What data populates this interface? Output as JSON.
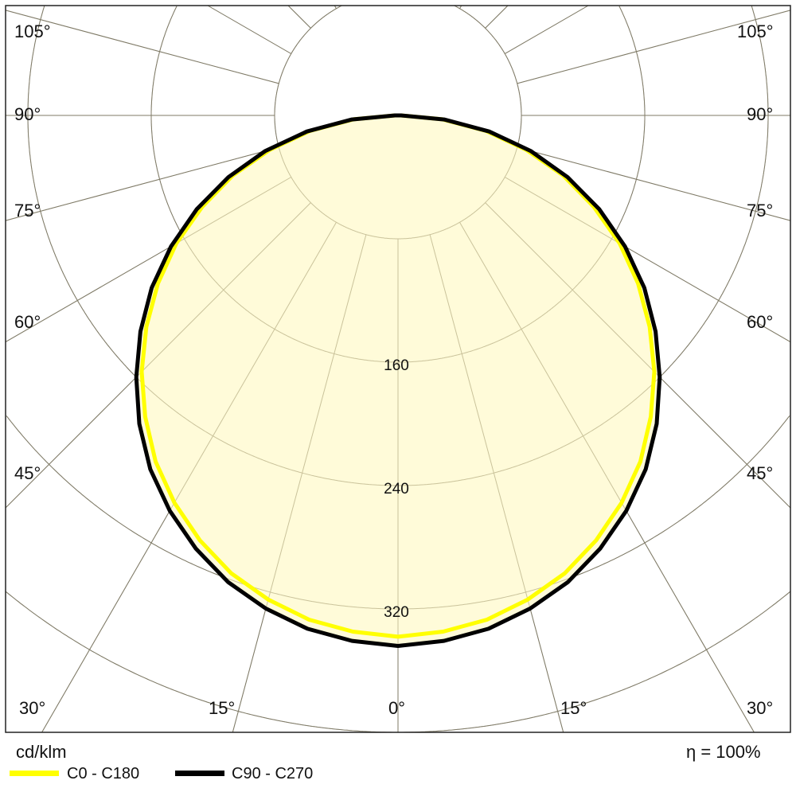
{
  "chart_data": {
    "type": "polar",
    "unit": "cd/klm",
    "efficiency_label": "η = 100%",
    "radial_ticks": [
      80,
      160,
      240,
      320,
      400
    ],
    "radial_tick_labels": [
      "160",
      "240",
      "320"
    ],
    "radial_max": 400,
    "angle_labels": [
      "105°",
      "90°",
      "75°",
      "60°",
      "45°",
      "30°",
      "15°",
      "0°",
      "15°",
      "30°",
      "45°",
      "60°",
      "75°",
      "90°",
      "105°"
    ],
    "grid": true,
    "fill_color": "#fffbd9",
    "angles": [
      0,
      5,
      10,
      15,
      20,
      25,
      30,
      35,
      40,
      45,
      50,
      55,
      60,
      65,
      70,
      75,
      80,
      85,
      90
    ],
    "series": [
      {
        "name": "C0 - C180",
        "color": "#ffff00",
        "values": [
          338,
          336,
          332,
          325,
          316,
          304,
          290,
          274,
          255,
          235,
          213,
          190,
          166,
          140,
          114,
          86,
          58,
          29,
          2
        ]
      },
      {
        "name": "C90 - C270",
        "color": "#000000",
        "values": [
          344,
          342,
          338,
          331,
          322,
          310,
          296,
          280,
          261,
          240,
          218,
          195,
          170,
          144,
          117,
          89,
          60,
          30,
          2
        ]
      }
    ]
  }
}
